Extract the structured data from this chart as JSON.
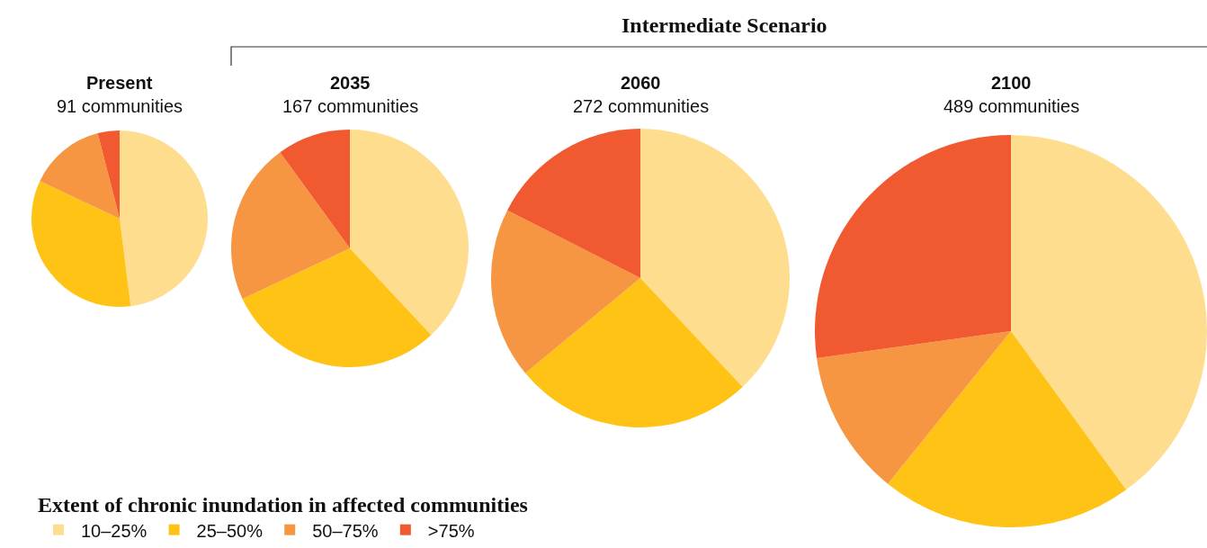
{
  "chart_data": [
    {
      "type": "pie",
      "title": "Present",
      "subtitle": "91 communities",
      "categories": [
        "10–25%",
        "25–50%",
        "50–75%",
        ">75%"
      ],
      "values": [
        48,
        34,
        14,
        4
      ],
      "colors": [
        "#fedd8f",
        "#fec314",
        "#f69643",
        "#f15a31"
      ],
      "legend": "bottom right",
      "legend_title": "Extent of chronic inundation in affected communities"
    },
    {
      "type": "pie",
      "title": "2035",
      "subtitle": "167 communities",
      "categories": [
        null,
        null,
        null,
        null
      ],
      "values": [
        38,
        30,
        22,
        10
      ],
      "colors": [
        "#fedd8f",
        "#fec314",
        "#f69643",
        "#f15a31"
      ],
      "annotations": [
        "Intermediate Scenario"
      ]
    },
    {
      "type": "pie",
      "title": "2060",
      "subtitle": "272 communities",
      "categories": [
        null,
        null,
        null,
        null
      ],
      "values": [
        38,
        26,
        18.5,
        17.5
      ],
      "colors": [
        "#fedd8f",
        "#fec314",
        "#f69643",
        "#f15a31"
      ]
    },
    {
      "type": "pie",
      "title": "2100",
      "subtitle": "489 communities",
      "categories": [
        null,
        null,
        null,
        null
      ],
      "values": [
        40,
        20.8,
        12,
        27.2
      ],
      "colors": [
        "#fedd8f",
        "#fec314",
        "#f69643",
        "#f15a31"
      ]
    }
  ]
}
